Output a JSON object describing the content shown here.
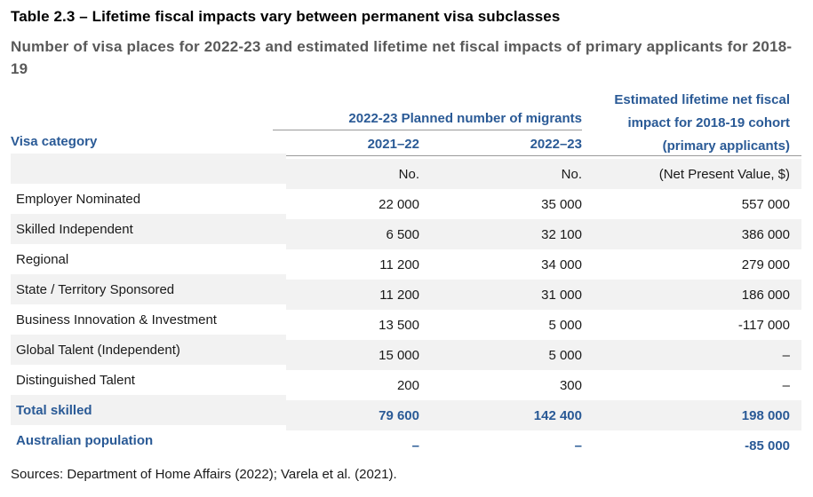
{
  "title": "Table 2.3 – Lifetime fiscal impacts vary between permanent visa subclasses",
  "subtitle": "Number of visa places for 2022-23 and estimated lifetime net fiscal impacts of primary applicants for 2018-19",
  "header": {
    "visa_category": "Visa category",
    "group_label": "2022-23 Planned number of migrants",
    "year1": "2021–22",
    "year2": "2022–23",
    "fiscal_line1": "Estimated lifetime net fiscal",
    "fiscal_line2": "impact for 2018-19 cohort",
    "fiscal_line3": "(primary applicants)"
  },
  "units": {
    "year1": "No.",
    "year2": "No.",
    "fiscal": "(Net Present Value, $)"
  },
  "rows": [
    {
      "category": "Employer Nominated",
      "y2021_22": "22 000",
      "y2022_23": "35 000",
      "fiscal": "557 000"
    },
    {
      "category": "Skilled Independent",
      "y2021_22": "6 500",
      "y2022_23": "32 100",
      "fiscal": "386 000"
    },
    {
      "category": "Regional",
      "y2021_22": "11 200",
      "y2022_23": "34 000",
      "fiscal": "279 000"
    },
    {
      "category": "State / Territory Sponsored",
      "y2021_22": "11 200",
      "y2022_23": "31 000",
      "fiscal": "186 000"
    },
    {
      "category": "Business Innovation & Investment",
      "y2021_22": "13 500",
      "y2022_23": "5 000",
      "fiscal": "-117 000"
    },
    {
      "category": "Global Talent (Independent)",
      "y2021_22": "15 000",
      "y2022_23": "5 000",
      "fiscal": "–"
    },
    {
      "category": "Distinguished Talent",
      "y2021_22": "200",
      "y2022_23": "300",
      "fiscal": "–"
    },
    {
      "category": "Total skilled",
      "y2021_22": "79 600",
      "y2022_23": "142 400",
      "fiscal": "198 000"
    },
    {
      "category": "Australian population",
      "y2021_22": "–",
      "y2022_23": "–",
      "fiscal": "-85 000"
    }
  ],
  "source": "Sources: Department of Home Affairs (2022); Varela et al. (2021)."
}
